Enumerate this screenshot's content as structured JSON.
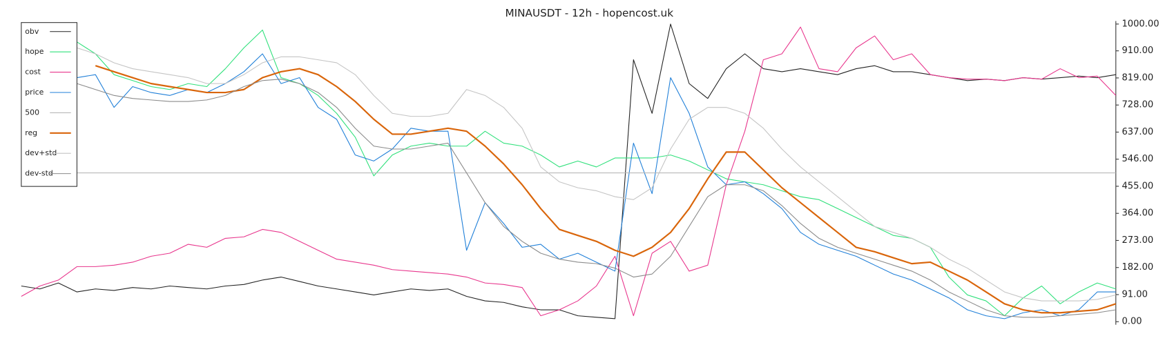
{
  "chart_data": {
    "type": "line",
    "title": "MINAUSDT - 12h - hopencost.uk",
    "ylim": [
      0,
      1000
    ],
    "yticks": [
      {
        "value": 0,
        "label": "0.00"
      },
      {
        "value": 91,
        "label": "91.00"
      },
      {
        "value": 182,
        "label": "182.00"
      },
      {
        "value": 273,
        "label": "273.00"
      },
      {
        "value": 364,
        "label": "364.00"
      },
      {
        "value": 455,
        "label": "455.00"
      },
      {
        "value": 546,
        "label": "546.00"
      },
      {
        "value": 637,
        "label": "637.00"
      },
      {
        "value": 728,
        "label": "728.00"
      },
      {
        "value": 819,
        "label": "819.00"
      },
      {
        "value": 910,
        "label": "910.00"
      },
      {
        "value": 1000,
        "label": "1000.00"
      }
    ],
    "grid": false,
    "legend": "upper left",
    "series": [
      {
        "name": "obv",
        "color": "#222222",
        "values": [
          120,
          110,
          130,
          100,
          110,
          105,
          115,
          110,
          120,
          115,
          110,
          120,
          125,
          140,
          150,
          135,
          120,
          110,
          100,
          90,
          100,
          110,
          105,
          110,
          85,
          70,
          65,
          50,
          40,
          40,
          20,
          15,
          10,
          880,
          700,
          1000,
          800,
          750,
          850,
          900,
          850,
          840,
          850,
          840,
          830,
          850,
          860,
          840,
          840,
          830,
          820,
          810,
          815,
          810,
          820,
          815,
          820,
          825,
          820,
          830
        ]
      },
      {
        "name": "hope",
        "color": "#2ee07a",
        "values": [
          null,
          null,
          null,
          940,
          900,
          830,
          810,
          790,
          780,
          800,
          790,
          850,
          920,
          980,
          820,
          800,
          760,
          700,
          620,
          490,
          560,
          590,
          600,
          590,
          590,
          640,
          600,
          590,
          560,
          520,
          540,
          520,
          550,
          550,
          550,
          560,
          540,
          510,
          480,
          470,
          460,
          440,
          420,
          410,
          380,
          350,
          320,
          290,
          280,
          250,
          150,
          90,
          70,
          20,
          80,
          120,
          60,
          100,
          130,
          110
        ]
      },
      {
        "name": "cost",
        "color": "#e8348c",
        "values": [
          85,
          120,
          140,
          185,
          185,
          190,
          200,
          220,
          230,
          260,
          250,
          280,
          285,
          310,
          300,
          270,
          240,
          210,
          200,
          190,
          175,
          170,
          165,
          160,
          150,
          130,
          125,
          115,
          20,
          40,
          70,
          120,
          220,
          20,
          230,
          270,
          170,
          190,
          460,
          640,
          880,
          900,
          990,
          850,
          840,
          920,
          960,
          880,
          900,
          830,
          820,
          815,
          815,
          810,
          820,
          815,
          850,
          820,
          825,
          760
        ]
      },
      {
        "name": "price",
        "color": "#1f7fd8",
        "values": [
          null,
          null,
          null,
          820,
          830,
          720,
          790,
          770,
          760,
          780,
          770,
          800,
          840,
          900,
          800,
          820,
          720,
          680,
          560,
          540,
          580,
          650,
          640,
          640,
          240,
          400,
          330,
          250,
          260,
          210,
          230,
          200,
          170,
          600,
          430,
          820,
          700,
          520,
          460,
          470,
          430,
          380,
          300,
          260,
          240,
          220,
          190,
          160,
          140,
          110,
          80,
          40,
          20,
          10,
          30,
          40,
          20,
          40,
          100,
          100
        ]
      },
      {
        "name": "500",
        "color": "#b8b8b8",
        "values": [
          500,
          500,
          500,
          500,
          500,
          500,
          500,
          500,
          500,
          500,
          500,
          500,
          500,
          500,
          500,
          500,
          500,
          500,
          500,
          500,
          500,
          500,
          500,
          500,
          500,
          500,
          500,
          500,
          500,
          500,
          500,
          500,
          500,
          500,
          500,
          500,
          500,
          500,
          500,
          500,
          500,
          500,
          500,
          500,
          500,
          500,
          500,
          500,
          500,
          500,
          500,
          500,
          500,
          500,
          500,
          500,
          500,
          500,
          500,
          500
        ]
      },
      {
        "name": "reg",
        "color": "#d9650a",
        "width": 2,
        "values": [
          null,
          null,
          null,
          null,
          860,
          840,
          820,
          800,
          790,
          780,
          770,
          770,
          780,
          820,
          840,
          850,
          830,
          790,
          740,
          680,
          630,
          630,
          640,
          650,
          640,
          590,
          530,
          460,
          380,
          310,
          290,
          270,
          240,
          220,
          250,
          300,
          380,
          480,
          570,
          570,
          510,
          450,
          400,
          350,
          300,
          250,
          235,
          215,
          195,
          200,
          170,
          140,
          100,
          60,
          40,
          30,
          30,
          35,
          40,
          60
        ]
      },
      {
        "name": "dev+std",
        "color": "#c4c4c4",
        "values": [
          null,
          null,
          null,
          920,
          900,
          870,
          850,
          840,
          830,
          820,
          800,
          800,
          830,
          870,
          890,
          890,
          880,
          870,
          830,
          760,
          700,
          690,
          690,
          700,
          780,
          760,
          720,
          650,
          520,
          470,
          450,
          440,
          420,
          410,
          450,
          580,
          680,
          720,
          720,
          700,
          650,
          580,
          520,
          470,
          420,
          370,
          320,
          300,
          280,
          250,
          210,
          180,
          140,
          100,
          80,
          70,
          70,
          70,
          75,
          90
        ]
      },
      {
        "name": "dev-std",
        "color": "#8a8a8a",
        "values": [
          null,
          null,
          null,
          800,
          780,
          760,
          750,
          745,
          740,
          740,
          745,
          760,
          790,
          810,
          815,
          800,
          770,
          720,
          650,
          590,
          580,
          580,
          590,
          600,
          500,
          400,
          320,
          270,
          230,
          210,
          200,
          195,
          180,
          150,
          160,
          220,
          320,
          420,
          460,
          460,
          440,
          390,
          330,
          280,
          250,
          230,
          210,
          190,
          170,
          140,
          100,
          70,
          40,
          20,
          15,
          15,
          20,
          25,
          30,
          40
        ]
      }
    ]
  }
}
